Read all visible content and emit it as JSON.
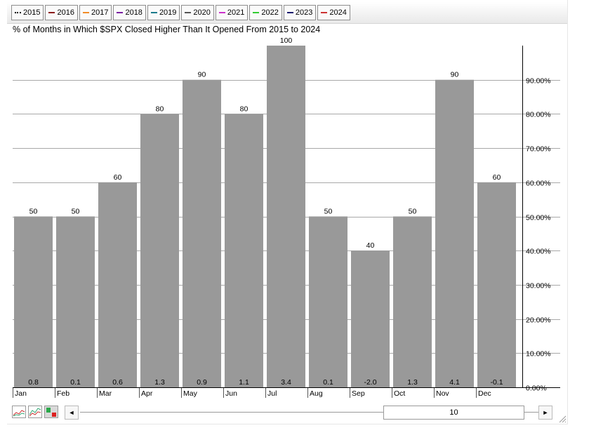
{
  "legend": [
    {
      "label": "2015",
      "color": "#000000",
      "style": "dotted"
    },
    {
      "label": "2016",
      "color": "#8b1a1a",
      "style": "solid"
    },
    {
      "label": "2017",
      "color": "#f28c28",
      "style": "solid"
    },
    {
      "label": "2018",
      "color": "#7a1fa2",
      "style": "solid"
    },
    {
      "label": "2019",
      "color": "#1a7a8b",
      "style": "solid"
    },
    {
      "label": "2020",
      "color": "#555555",
      "style": "solid"
    },
    {
      "label": "2021",
      "color": "#cc33cc",
      "style": "solid"
    },
    {
      "label": "2022",
      "color": "#33cc33",
      "style": "solid"
    },
    {
      "label": "2023",
      "color": "#1a1a6e",
      "style": "solid"
    },
    {
      "label": "2024",
      "color": "#cc3333",
      "style": "solid"
    }
  ],
  "chart_data": {
    "type": "bar",
    "title": "% of Months in Which $SPX Closed Higher Than It Opened From 2015 to 2024",
    "categories": [
      "Jan",
      "Feb",
      "Mar",
      "Apr",
      "May",
      "Jun",
      "Jul",
      "Aug",
      "Sep",
      "Oct",
      "Nov",
      "Dec"
    ],
    "values": [
      50,
      50,
      60,
      80,
      90,
      80,
      100,
      50,
      40,
      50,
      90,
      60
    ],
    "bottom_labels": [
      "0.8",
      "0.1",
      "0.6",
      "1.3",
      "0.9",
      "1.1",
      "3.4",
      "0.1",
      "-2.0",
      "1.3",
      "4.1",
      "-0.1"
    ],
    "yticks": [
      "0.00%",
      "10.00%",
      "20.00%",
      "30.00%",
      "40.00%",
      "50.00%",
      "60.00%",
      "70.00%",
      "80.00%",
      "90.00%"
    ],
    "ylim": [
      0,
      100
    ],
    "bar_color": "#999999",
    "grid": true
  },
  "scrollbar": {
    "left_arrow": "◄",
    "right_arrow": "►",
    "handle_label": "10"
  }
}
